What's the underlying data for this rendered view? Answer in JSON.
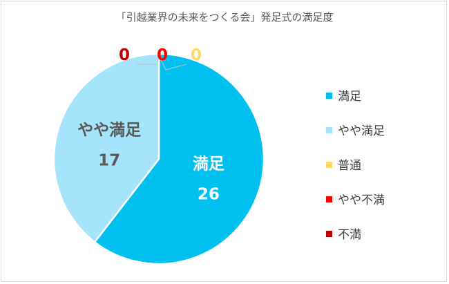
{
  "chart_data": {
    "type": "pie",
    "title": "「引越業界の未来をつくる会」発足式の満足度",
    "categories": [
      "満足",
      "やや満足",
      "普通",
      "やや不満",
      "不満"
    ],
    "values": [
      26,
      17,
      0,
      0,
      0
    ],
    "colors": [
      "#00c0f0",
      "#a6e4fc",
      "#ffd966",
      "#ff0000",
      "#c00000"
    ],
    "legend_position": "right",
    "data_labels": {
      "show_category": true,
      "show_value": true
    }
  }
}
